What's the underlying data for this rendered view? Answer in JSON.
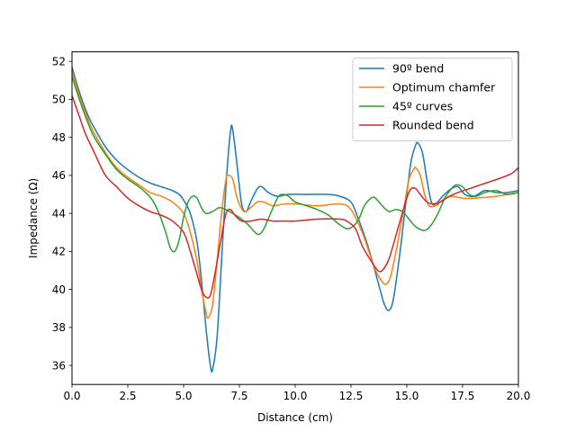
{
  "chart_data": {
    "type": "line",
    "xlabel": "Distance (cm)",
    "ylabel": "Impedance (Ω)",
    "xlim": [
      0,
      20
    ],
    "ylim": [
      35,
      52.5
    ],
    "xticks": [
      0,
      2.5,
      5,
      7.5,
      10,
      12.5,
      15,
      17.5,
      20
    ],
    "xtick_labels": [
      "0.0",
      "2.5",
      "5.0",
      "7.5",
      "10.0",
      "12.5",
      "15.0",
      "17.5",
      "20.0"
    ],
    "yticks": [
      36,
      38,
      40,
      42,
      44,
      46,
      48,
      50,
      52
    ],
    "ytick_labels": [
      "36",
      "38",
      "40",
      "42",
      "44",
      "46",
      "48",
      "50",
      "52"
    ],
    "grid": false,
    "legend_position": "top-right",
    "series": [
      {
        "name": "90º bend",
        "color": "#1f77b4",
        "points": [
          [
            0,
            51.7
          ],
          [
            0.3,
            50.5
          ],
          [
            0.7,
            49.2
          ],
          [
            1.0,
            48.5
          ],
          [
            1.5,
            47.5
          ],
          [
            2.0,
            46.8
          ],
          [
            2.5,
            46.3
          ],
          [
            3.0,
            45.9
          ],
          [
            3.5,
            45.6
          ],
          [
            4.0,
            45.4
          ],
          [
            4.5,
            45.2
          ],
          [
            4.8,
            45.0
          ],
          [
            5.0,
            44.7
          ],
          [
            5.3,
            44.0
          ],
          [
            5.6,
            42.5
          ],
          [
            5.8,
            40.5
          ],
          [
            6.0,
            38.0
          ],
          [
            6.2,
            36.0
          ],
          [
            6.3,
            35.8
          ],
          [
            6.5,
            37.5
          ],
          [
            6.7,
            41.5
          ],
          [
            6.9,
            45.5
          ],
          [
            7.1,
            48.3
          ],
          [
            7.2,
            48.4
          ],
          [
            7.4,
            46.5
          ],
          [
            7.6,
            44.5
          ],
          [
            7.8,
            44.1
          ],
          [
            8.0,
            44.6
          ],
          [
            8.3,
            45.3
          ],
          [
            8.5,
            45.4
          ],
          [
            8.8,
            45.1
          ],
          [
            9.2,
            44.9
          ],
          [
            9.7,
            45.0
          ],
          [
            10.5,
            45.0
          ],
          [
            11.5,
            45.0
          ],
          [
            12.0,
            44.9
          ],
          [
            12.5,
            44.6
          ],
          [
            12.8,
            43.8
          ],
          [
            13.2,
            42.5
          ],
          [
            13.5,
            41.3
          ],
          [
            13.8,
            40.0
          ],
          [
            14.0,
            39.2
          ],
          [
            14.2,
            38.9
          ],
          [
            14.4,
            39.5
          ],
          [
            14.7,
            42.0
          ],
          [
            15.0,
            45.0
          ],
          [
            15.2,
            46.8
          ],
          [
            15.4,
            47.6
          ],
          [
            15.5,
            47.7
          ],
          [
            15.7,
            47.2
          ],
          [
            15.9,
            45.8
          ],
          [
            16.1,
            44.6
          ],
          [
            16.3,
            44.5
          ],
          [
            16.6,
            44.9
          ],
          [
            17.0,
            45.3
          ],
          [
            17.3,
            45.4
          ],
          [
            17.6,
            45.0
          ],
          [
            18.0,
            44.9
          ],
          [
            18.5,
            45.2
          ],
          [
            19.0,
            45.1
          ],
          [
            19.5,
            45.1
          ],
          [
            20.0,
            45.2
          ]
        ]
      },
      {
        "name": "Optimum chamfer",
        "color": "#ff7f0e",
        "points": [
          [
            0,
            51.5
          ],
          [
            0.3,
            50.3
          ],
          [
            0.7,
            49.0
          ],
          [
            1.0,
            48.2
          ],
          [
            1.5,
            47.2
          ],
          [
            2.0,
            46.4
          ],
          [
            2.5,
            45.9
          ],
          [
            3.0,
            45.5
          ],
          [
            3.5,
            45.1
          ],
          [
            4.0,
            44.9
          ],
          [
            4.5,
            44.6
          ],
          [
            5.0,
            44.0
          ],
          [
            5.3,
            43.0
          ],
          [
            5.6,
            41.5
          ],
          [
            5.8,
            40.0
          ],
          [
            6.0,
            38.8
          ],
          [
            6.1,
            38.5
          ],
          [
            6.3,
            39.2
          ],
          [
            6.5,
            41.5
          ],
          [
            6.7,
            44.0
          ],
          [
            6.9,
            45.8
          ],
          [
            7.0,
            46.0
          ],
          [
            7.2,
            45.8
          ],
          [
            7.4,
            44.8
          ],
          [
            7.7,
            44.1
          ],
          [
            8.0,
            44.3
          ],
          [
            8.3,
            44.6
          ],
          [
            8.6,
            44.6
          ],
          [
            9.0,
            44.4
          ],
          [
            9.5,
            44.5
          ],
          [
            10.0,
            44.5
          ],
          [
            11.0,
            44.4
          ],
          [
            12.0,
            44.5
          ],
          [
            12.5,
            44.2
          ],
          [
            13.0,
            43.0
          ],
          [
            13.3,
            42.0
          ],
          [
            13.6,
            41.0
          ],
          [
            13.9,
            40.4
          ],
          [
            14.1,
            40.3
          ],
          [
            14.3,
            40.8
          ],
          [
            14.6,
            42.5
          ],
          [
            14.9,
            44.5
          ],
          [
            15.1,
            45.8
          ],
          [
            15.3,
            46.3
          ],
          [
            15.4,
            46.4
          ],
          [
            15.6,
            46.0
          ],
          [
            15.8,
            45.0
          ],
          [
            16.0,
            44.4
          ],
          [
            16.3,
            44.4
          ],
          [
            16.6,
            44.7
          ],
          [
            17.0,
            44.9
          ],
          [
            17.5,
            44.8
          ],
          [
            18.0,
            44.8
          ],
          [
            19.0,
            44.9
          ],
          [
            20.0,
            45.1
          ]
        ]
      },
      {
        "name": "45º curves",
        "color": "#2ca02c",
        "points": [
          [
            0,
            51.2
          ],
          [
            0.3,
            50.1
          ],
          [
            0.7,
            48.8
          ],
          [
            1.0,
            48.0
          ],
          [
            1.5,
            47.1
          ],
          [
            2.0,
            46.3
          ],
          [
            2.5,
            45.8
          ],
          [
            3.0,
            45.4
          ],
          [
            3.3,
            45.1
          ],
          [
            3.6,
            44.7
          ],
          [
            3.9,
            44.0
          ],
          [
            4.2,
            43.0
          ],
          [
            4.4,
            42.2
          ],
          [
            4.6,
            42.0
          ],
          [
            4.8,
            42.6
          ],
          [
            5.0,
            43.8
          ],
          [
            5.2,
            44.6
          ],
          [
            5.4,
            44.9
          ],
          [
            5.6,
            44.8
          ],
          [
            5.8,
            44.3
          ],
          [
            6.0,
            44.0
          ],
          [
            6.3,
            44.1
          ],
          [
            6.6,
            44.3
          ],
          [
            6.9,
            44.2
          ],
          [
            7.2,
            44.0
          ],
          [
            7.6,
            43.7
          ],
          [
            7.9,
            43.4
          ],
          [
            8.2,
            43.0
          ],
          [
            8.4,
            42.9
          ],
          [
            8.6,
            43.2
          ],
          [
            8.9,
            44.0
          ],
          [
            9.2,
            44.8
          ],
          [
            9.4,
            45.0
          ],
          [
            9.7,
            44.9
          ],
          [
            10.0,
            44.6
          ],
          [
            10.5,
            44.4
          ],
          [
            11.0,
            44.2
          ],
          [
            11.5,
            43.9
          ],
          [
            12.0,
            43.4
          ],
          [
            12.4,
            43.2
          ],
          [
            12.8,
            43.6
          ],
          [
            13.1,
            44.4
          ],
          [
            13.4,
            44.8
          ],
          [
            13.6,
            44.8
          ],
          [
            13.9,
            44.4
          ],
          [
            14.2,
            44.1
          ],
          [
            14.5,
            44.2
          ],
          [
            14.8,
            44.1
          ],
          [
            15.1,
            43.7
          ],
          [
            15.4,
            43.3
          ],
          [
            15.8,
            43.1
          ],
          [
            16.1,
            43.4
          ],
          [
            16.4,
            44.0
          ],
          [
            16.7,
            44.8
          ],
          [
            17.0,
            45.3
          ],
          [
            17.2,
            45.5
          ],
          [
            17.5,
            45.4
          ],
          [
            17.8,
            45.0
          ],
          [
            18.1,
            44.9
          ],
          [
            18.5,
            45.1
          ],
          [
            19.0,
            45.2
          ],
          [
            19.5,
            45.0
          ],
          [
            20.0,
            45.1
          ]
        ]
      },
      {
        "name": "Rounded bend",
        "color": "#d62728",
        "points": [
          [
            0,
            50.2
          ],
          [
            0.3,
            49.2
          ],
          [
            0.6,
            48.2
          ],
          [
            1.0,
            47.2
          ],
          [
            1.5,
            46.0
          ],
          [
            2.0,
            45.4
          ],
          [
            2.5,
            44.8
          ],
          [
            3.0,
            44.4
          ],
          [
            3.5,
            44.1
          ],
          [
            4.0,
            43.9
          ],
          [
            4.5,
            43.6
          ],
          [
            5.0,
            43.0
          ],
          [
            5.3,
            42.0
          ],
          [
            5.6,
            40.8
          ],
          [
            5.8,
            40.0
          ],
          [
            6.0,
            39.6
          ],
          [
            6.2,
            39.7
          ],
          [
            6.4,
            40.8
          ],
          [
            6.7,
            42.8
          ],
          [
            6.9,
            44.0
          ],
          [
            7.1,
            44.2
          ],
          [
            7.3,
            43.9
          ],
          [
            7.6,
            43.6
          ],
          [
            8.0,
            43.6
          ],
          [
            8.5,
            43.7
          ],
          [
            9.0,
            43.6
          ],
          [
            9.5,
            43.6
          ],
          [
            10.0,
            43.6
          ],
          [
            11.0,
            43.7
          ],
          [
            12.0,
            43.7
          ],
          [
            12.3,
            43.6
          ],
          [
            12.7,
            43.2
          ],
          [
            13.0,
            42.3
          ],
          [
            13.4,
            41.5
          ],
          [
            13.7,
            41.0
          ],
          [
            13.9,
            41.0
          ],
          [
            14.2,
            41.6
          ],
          [
            14.6,
            43.2
          ],
          [
            15.0,
            44.8
          ],
          [
            15.2,
            45.3
          ],
          [
            15.4,
            45.3
          ],
          [
            15.6,
            45.0
          ],
          [
            15.9,
            44.6
          ],
          [
            16.2,
            44.5
          ],
          [
            16.5,
            44.6
          ],
          [
            16.9,
            44.9
          ],
          [
            17.3,
            45.1
          ],
          [
            17.8,
            45.3
          ],
          [
            18.3,
            45.5
          ],
          [
            18.8,
            45.7
          ],
          [
            19.3,
            45.9
          ],
          [
            19.7,
            46.1
          ],
          [
            20.0,
            46.4
          ]
        ]
      }
    ]
  }
}
